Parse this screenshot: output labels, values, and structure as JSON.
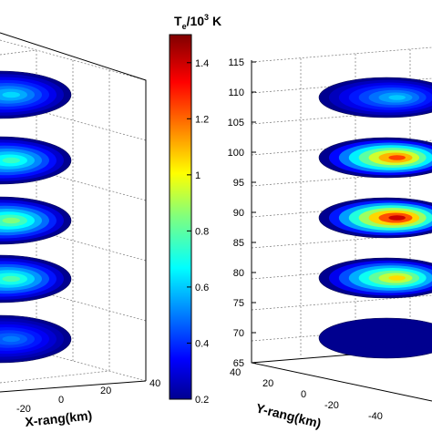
{
  "chart_data": [
    {
      "type": "heatmap",
      "panel": "left",
      "description_style": "stacked horizontal slices of a 3-D volume",
      "xlabel": "X-rang(km)",
      "x_ticks": [
        "-20",
        "0",
        "20",
        "40"
      ],
      "slices": [
        {
          "level": "top",
          "peak": 0.62
        },
        {
          "level": "upper",
          "peak": 0.75
        },
        {
          "level": "middle",
          "peak": 0.85
        },
        {
          "level": "lower",
          "peak": 0.78
        },
        {
          "level": "bottom",
          "peak": 0.5
        }
      ]
    },
    {
      "type": "heatmap",
      "panel": "right",
      "description_style": "stacked horizontal slices of a 3-D volume",
      "xlabel": "Y-rang(km)",
      "x_ticks": [
        "-40",
        "-20",
        "0",
        "20",
        "40"
      ],
      "y_ticks": [
        "65",
        "70",
        "75",
        "80",
        "85",
        "90",
        "95",
        "100",
        "105",
        "110",
        "115"
      ],
      "y_range": [
        65,
        115
      ],
      "slices": [
        {
          "altitude": 110,
          "peak": 0.6
        },
        {
          "altitude": 100,
          "peak": 1.25
        },
        {
          "altitude": 90,
          "peak": 1.4
        },
        {
          "altitude": 80,
          "peak": 1.05
        },
        {
          "altitude": 70,
          "peak": 0.2
        }
      ]
    },
    {
      "type": "colorbar",
      "title": "T",
      "title_sub": "e",
      "title_rest": "/10",
      "title_sup": "3",
      "title_unit": " K",
      "range": [
        0.2,
        1.5
      ],
      "ticks": [
        "1.4",
        "1.2",
        "1",
        "0.8",
        "0.6",
        "0.4",
        "0.2"
      ],
      "tick_values": [
        1.4,
        1.2,
        1.0,
        0.8,
        0.6,
        0.4,
        0.2
      ]
    }
  ]
}
